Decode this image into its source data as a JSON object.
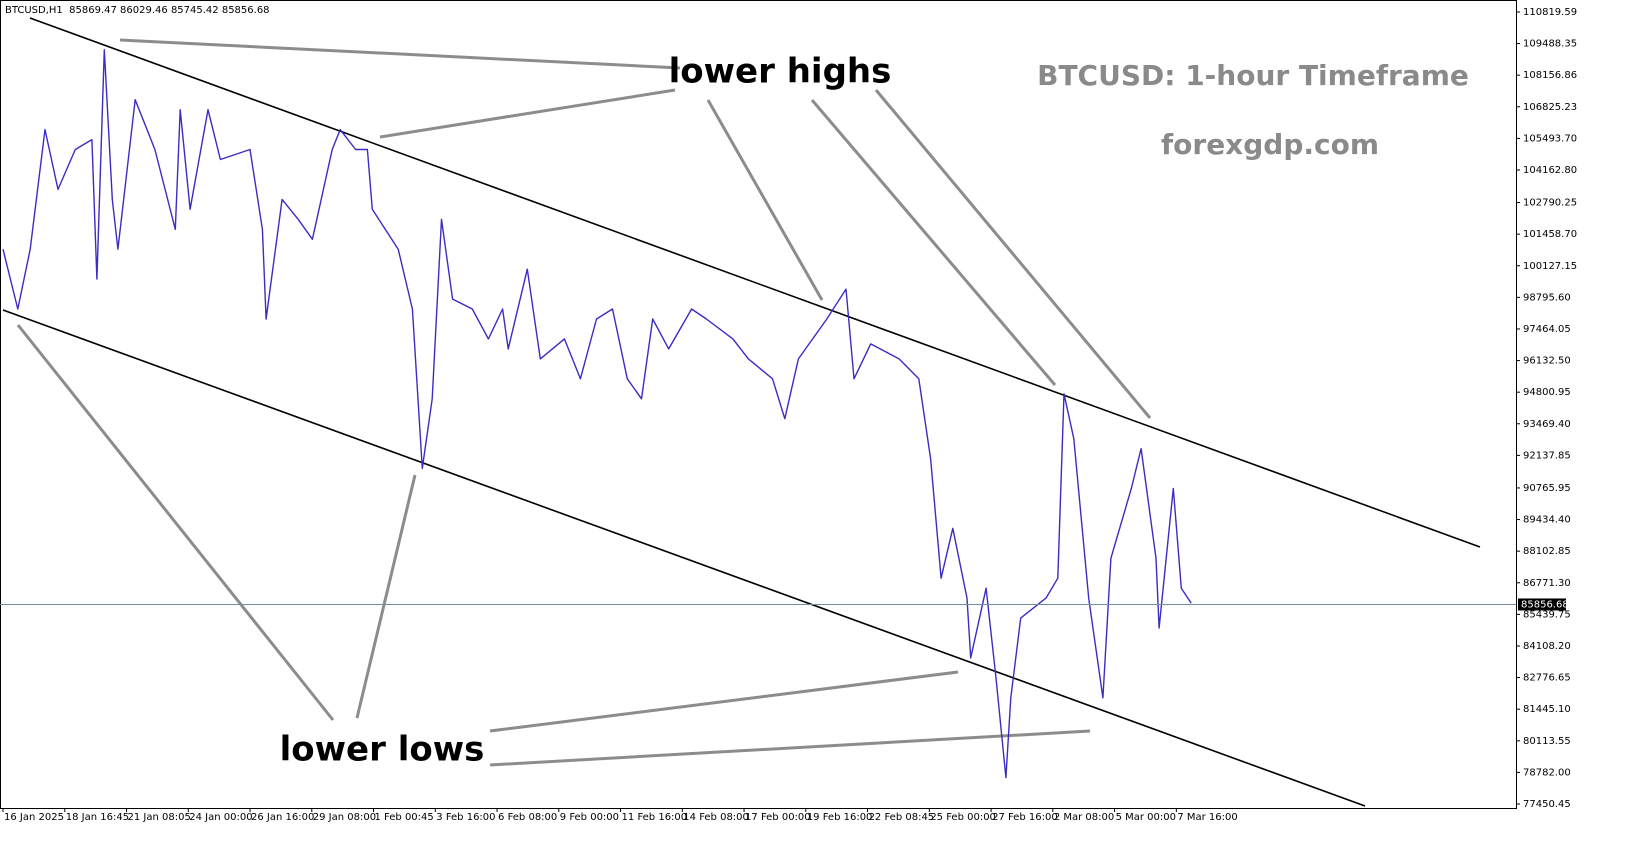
{
  "chart_data": {
    "type": "line",
    "header": "BTCUSD,H1  85869.47 86029.46 85745.42 85856.68",
    "title": "BTCUSD: 1-hour Timeframe",
    "subtitle": "forexgdp.com",
    "annotations": [
      "lower highs",
      "lower lows"
    ],
    "x": [
      0,
      0.24,
      0.44,
      0.68,
      0.89,
      1.17,
      1.44,
      1.52,
      1.64,
      1.77,
      1.86,
      2.14,
      2.46,
      2.79,
      2.87,
      3.03,
      3.32,
      3.52,
      4.0,
      4.2,
      4.26,
      4.52,
      4.78,
      5.01,
      5.33,
      5.46,
      5.71,
      5.9,
      5.98,
      6.4,
      6.63,
      6.79,
      6.95,
      7.1,
      7.28,
      7.6,
      7.86,
      8.09,
      8.18,
      8.49,
      8.7,
      9.09,
      9.35,
      9.61,
      9.87,
      10.11,
      10.34,
      10.52,
      10.78,
      11.15,
      11.39,
      11.82,
      12.07,
      12.46,
      12.66,
      12.88,
      13.34,
      13.65,
      13.78,
      14.05,
      14.51,
      14.83,
      15.02,
      15.19,
      15.38,
      15.61,
      15.67,
      15.92,
      16.08,
      16.24,
      16.32,
      16.48,
      16.89,
      17.08,
      17.18,
      17.34,
      17.58,
      17.81,
      17.94,
      18.27,
      18.43,
      18.67,
      18.72,
      18.95,
      19.08,
      19.24
    ],
    "series": [
      {
        "color": "#3b2cc4",
        "values": [
          100824,
          98304,
          100824,
          105864,
          103344,
          105024,
          105444,
          99564,
          109224,
          102924,
          100824,
          107124,
          105024,
          101664,
          106704,
          102504,
          106704,
          104604,
          105024,
          101664,
          97884,
          102924,
          102084,
          101244,
          105024,
          105864,
          105024,
          105024,
          102504,
          100824,
          98304,
          91584,
          94524,
          102084,
          98724,
          98304,
          97044,
          98304,
          96624,
          99984,
          96204,
          97044,
          95364,
          97884,
          98304,
          95364,
          94524,
          97884,
          96624,
          98304,
          97884,
          97044,
          96204,
          95364,
          93684,
          96204,
          97884,
          99144,
          95364,
          96834,
          96204,
          95364,
          92004,
          86964,
          89064,
          86124,
          83604,
          86544,
          82764,
          78564,
          81924,
          85284,
          86124,
          86964,
          94734,
          92844,
          86124,
          81924,
          87804,
          90744,
          92424,
          87804,
          84864,
          90744,
          86544,
          85914
        ]
      }
    ],
    "current_price": 85856.68,
    "xlim": [
      0,
      24.5
    ],
    "xticks": [
      {
        "value": 0,
        "label": "16 Jan 2025"
      },
      {
        "value": 1,
        "label": "18 Jan 16:45"
      },
      {
        "value": 2,
        "label": "21 Jan 08:05"
      },
      {
        "value": 3,
        "label": "24 Jan 00:00"
      },
      {
        "value": 4,
        "label": "26 Jan 16:00"
      },
      {
        "value": 5,
        "label": "29 Jan 08:00"
      },
      {
        "value": 6,
        "label": "1 Feb 00:45"
      },
      {
        "value": 7,
        "label": "3 Feb 16:00"
      },
      {
        "value": 8,
        "label": "6 Feb 08:00"
      },
      {
        "value": 9,
        "label": "9 Feb 00:00"
      },
      {
        "value": 10,
        "label": "11 Feb 16:00"
      },
      {
        "value": 11,
        "label": "14 Feb 08:00"
      },
      {
        "value": 12,
        "label": "17 Feb 00:00"
      },
      {
        "value": 13,
        "label": "19 Feb 16:00"
      },
      {
        "value": 14,
        "label": "22 Feb 08:45"
      },
      {
        "value": 15,
        "label": "25 Feb 00:00"
      },
      {
        "value": 16,
        "label": "27 Feb 16:00"
      },
      {
        "value": 17,
        "label": "2 Mar 08:00"
      },
      {
        "value": 18,
        "label": "5 Mar 00:00"
      },
      {
        "value": 19,
        "label": "7 Mar 16:00"
      }
    ],
    "ylim": [
      77282,
      111324
    ],
    "yticks": [
      110819.59,
      109488.35,
      108156.86,
      106825.23,
      {
        "value": 105493.7,
        "label": "105493.70"
      },
      {
        "value": 104162.8,
        "label": "104162.80"
      },
      102790.25,
      {
        "value": 101458.7,
        "label": "101458.70"
      },
      100127.15,
      {
        "value": 98795.6,
        "label": "98795.60"
      },
      97464.05,
      {
        "value": 96132.5,
        "label": "96132.50"
      },
      94800.95,
      {
        "value": 93469.4,
        "label": "93469.40"
      },
      92137.85,
      90765.95,
      {
        "value": 89434.4,
        "label": "89434.40"
      },
      88102.85,
      {
        "value": 86771.3,
        "label": "86771.30"
      },
      85439.75,
      {
        "value": 84108.2,
        "label": "84108.20"
      },
      82776.65,
      {
        "value": 81445.1,
        "label": "81445.10"
      },
      80113.55,
      {
        "value": 78782.0,
        "label": "78782.00"
      },
      77450.45
    ]
  }
}
